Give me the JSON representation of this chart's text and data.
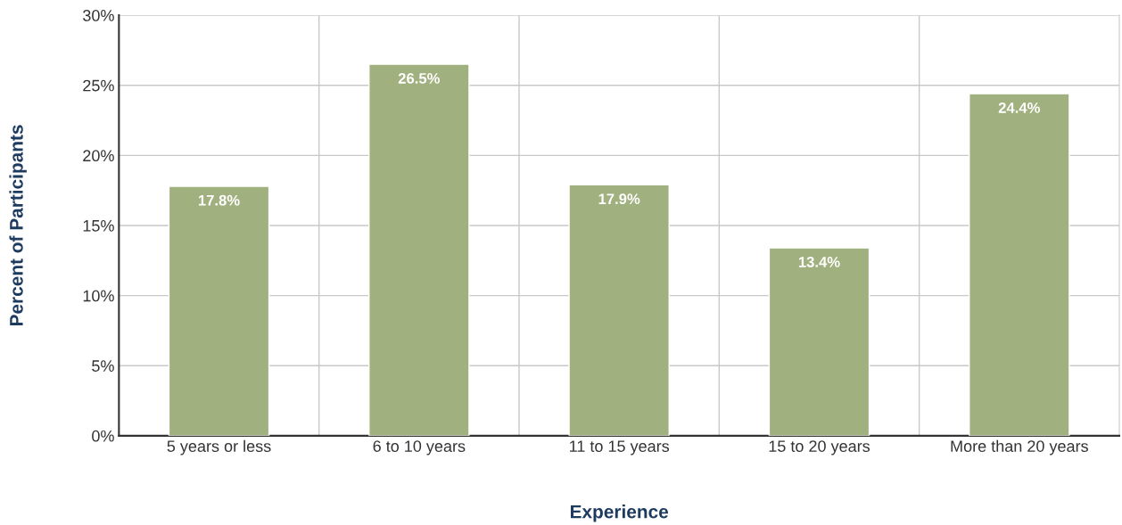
{
  "chart_data": {
    "type": "bar",
    "xlabel": "Experience",
    "ylabel": "Percent of Participants",
    "categories": [
      "5 years or less",
      "6 to 10 years",
      "11 to 15 years",
      "15 to 20 years",
      "More than 20 years"
    ],
    "values": [
      17.8,
      26.5,
      17.9,
      13.4,
      24.4
    ],
    "value_labels": [
      "17.8%",
      "26.5%",
      "17.9%",
      "13.4%",
      "24.4%"
    ],
    "color": "#a0b07e",
    "ylim": [
      0,
      30
    ],
    "yticks": [
      {
        "value": 0,
        "label": "0%"
      },
      {
        "value": 5,
        "label": "5%"
      },
      {
        "value": 10,
        "label": "10%"
      },
      {
        "value": 15,
        "label": "15%"
      },
      {
        "value": 20,
        "label": "20%"
      },
      {
        "value": 25,
        "label": "25%"
      },
      {
        "value": 30,
        "label": "30%"
      }
    ],
    "grid": true
  }
}
